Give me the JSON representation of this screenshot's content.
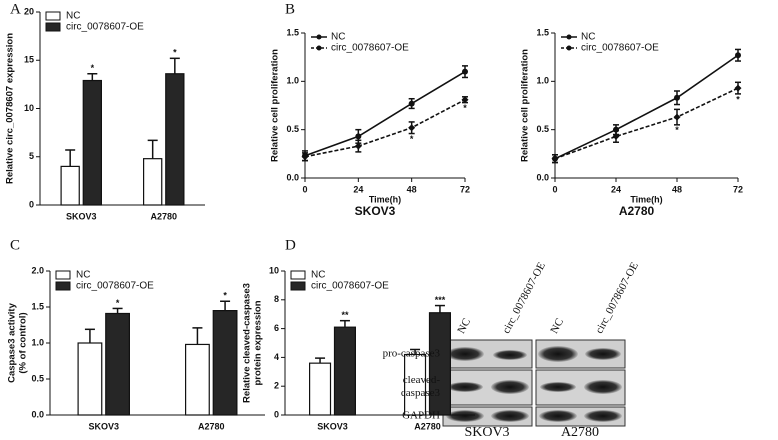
{
  "panel_labels": [
    "A",
    "B",
    "C",
    "D"
  ],
  "chart_data": [
    {
      "type": "bar",
      "ylabel": [
        "Relative circ_0078607 expression"
      ],
      "categories": [
        "SKOV3",
        "A2780"
      ],
      "ylim": [
        0,
        20
      ],
      "yticks": [
        0,
        5,
        10,
        15,
        20
      ],
      "series": [
        {
          "name": "NC",
          "color": "#ffffff",
          "values": [
            4.0,
            4.8
          ],
          "errors": [
            1.7,
            1.9
          ]
        },
        {
          "name": "circ_0078607-OE",
          "color": "#262626",
          "values": [
            12.9,
            13.6
          ],
          "errors": [
            0.7,
            1.6
          ],
          "annotations": [
            "*",
            "*"
          ]
        }
      ]
    },
    {
      "type": "line",
      "ylabel": [
        "Relative cell proliferation"
      ],
      "xlabel": "Time(h)",
      "subtitle": "SKOV3",
      "x": [
        0,
        24,
        48,
        72
      ],
      "xlim": [
        0,
        72
      ],
      "xticks": [
        0,
        24,
        48,
        72
      ],
      "ylim": [
        0,
        1.5
      ],
      "yticks": [
        {
          "value": 0,
          "label": "0.0"
        },
        0.5,
        {
          "value": 1,
          "label": "1.0"
        },
        1.5
      ],
      "series": [
        {
          "name": "NC",
          "color": "#111111",
          "line_style": "solid",
          "marker": "circle",
          "values": [
            0.23,
            0.43,
            0.77,
            1.1
          ],
          "errors": [
            0.05,
            0.07,
            0.05,
            0.06
          ]
        },
        {
          "name": "circ_0078607-OE",
          "color": "#111111",
          "line_style": "dashed",
          "marker": "diamond",
          "values": [
            0.22,
            0.33,
            0.52,
            0.81
          ],
          "errors": [
            0.04,
            0.06,
            0.06,
            0.03
          ],
          "annotations": [
            null,
            null,
            "*",
            "*"
          ]
        }
      ]
    },
    {
      "type": "line",
      "ylabel": [
        "Relative cell proliferation"
      ],
      "xlabel": "Time(h)",
      "subtitle": "A2780",
      "x": [
        0,
        24,
        48,
        72
      ],
      "xlim": [
        0,
        72
      ],
      "xticks": [
        0,
        24,
        48,
        72
      ],
      "ylim": [
        0,
        1.5
      ],
      "yticks": [
        {
          "value": 0,
          "label": "0.0"
        },
        0.5,
        {
          "value": 1,
          "label": "1.0"
        },
        1.5
      ],
      "series": [
        {
          "name": "NC",
          "color": "#111111",
          "line_style": "solid",
          "marker": "circle",
          "values": [
            0.2,
            0.5,
            0.83,
            1.27
          ],
          "errors": [
            0.04,
            0.05,
            0.07,
            0.06
          ]
        },
        {
          "name": "circ_0078607-OE",
          "color": "#111111",
          "line_style": "dashed",
          "marker": "diamond",
          "values": [
            0.2,
            0.43,
            0.63,
            0.93
          ],
          "errors": [
            0.04,
            0.06,
            0.08,
            0.06
          ],
          "annotations": [
            null,
            null,
            "*",
            "*"
          ]
        }
      ]
    },
    {
      "type": "bar",
      "ylabel": [
        "Caspase3 activity",
        "(% of control)"
      ],
      "categories": [
        "SKOV3",
        "A2780"
      ],
      "ylim": [
        0,
        2
      ],
      "yticks": [
        {
          "value": 0,
          "label": "0.0"
        },
        0.5,
        {
          "value": 1,
          "label": "1.0"
        },
        1.5,
        {
          "value": 2,
          "label": "2.0"
        }
      ],
      "series": [
        {
          "name": "NC",
          "color": "#ffffff",
          "values": [
            1.0,
            0.98
          ],
          "errors": [
            0.19,
            0.23
          ]
        },
        {
          "name": "circ_0078607-OE",
          "color": "#262626",
          "values": [
            1.41,
            1.45
          ],
          "errors": [
            0.07,
            0.13
          ],
          "annotations": [
            "*",
            "*"
          ]
        }
      ]
    },
    {
      "type": "bar",
      "ylabel": [
        "Relative cleaved-caspase3",
        "protein expression"
      ],
      "categories": [
        "SKOV3",
        "A2780"
      ],
      "ylim": [
        0,
        10
      ],
      "yticks": [
        0,
        2,
        4,
        6,
        8,
        10
      ],
      "series": [
        {
          "name": "NC",
          "color": "#ffffff",
          "values": [
            3.6,
            4.2
          ],
          "errors": [
            0.35,
            0.35
          ]
        },
        {
          "name": "circ_0078607-OE",
          "color": "#262626",
          "values": [
            6.1,
            7.1
          ],
          "errors": [
            0.45,
            0.5
          ],
          "annotations": [
            "**",
            "***"
          ]
        }
      ]
    }
  ],
  "blot": {
    "lanes": [
      "NC",
      "circ_0078607-OE",
      "NC",
      "circ_0078607-OE"
    ],
    "rows": [
      [
        "pro-caspase3"
      ],
      [
        "cleaved-",
        "caspase3"
      ],
      [
        "GAPDH"
      ]
    ],
    "cell_lines": [
      "SKOV3",
      "A2780"
    ]
  }
}
